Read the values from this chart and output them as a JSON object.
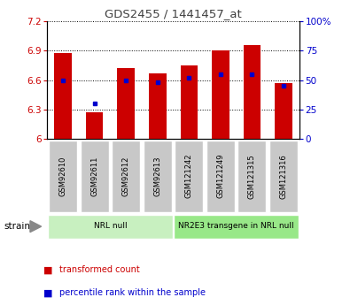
{
  "title": "GDS2455 / 1441457_at",
  "samples": [
    "GSM92610",
    "GSM92611",
    "GSM92612",
    "GSM92613",
    "GSM121242",
    "GSM121249",
    "GSM121315",
    "GSM121316"
  ],
  "red_values": [
    6.88,
    6.27,
    6.72,
    6.67,
    6.75,
    6.9,
    6.96,
    6.57
  ],
  "blue_pct": [
    50,
    30,
    50,
    48,
    52,
    55,
    55,
    45
  ],
  "ylim": [
    6.0,
    7.2
  ],
  "yticks": [
    6.0,
    6.3,
    6.6,
    6.9,
    7.2
  ],
  "ytick_labels": [
    "6",
    "6.3",
    "6.6",
    "6.9",
    "7.2"
  ],
  "right_yticks": [
    0,
    25,
    50,
    75,
    100
  ],
  "right_ytick_labels": [
    "0",
    "25",
    "50",
    "75",
    "100%"
  ],
  "groups": [
    {
      "label": "NRL null",
      "start": 0,
      "end": 4,
      "color": "#c8f0c0"
    },
    {
      "label": "NR2E3 transgene in NRL null",
      "start": 4,
      "end": 8,
      "color": "#98e888"
    }
  ],
  "bar_color": "#cc0000",
  "blue_color": "#0000cc",
  "tick_bg_color": "#c8c8c8",
  "title_color": "#404040",
  "red_label_color": "#cc0000",
  "blue_label_color": "#0000cc",
  "legend_red": "transformed count",
  "legend_blue": "percentile rank within the sample",
  "strain_label": "strain"
}
